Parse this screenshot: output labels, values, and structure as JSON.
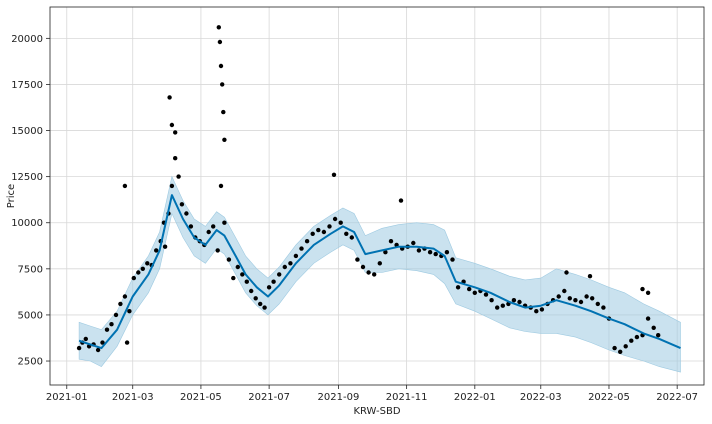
{
  "chart_data": {
    "type": "scatter",
    "title": "",
    "xlabel": "KRW-SBD",
    "ylabel": "Price",
    "xlim": [
      "2020-12-17",
      "2022-07-25"
    ],
    "ylim": [
      1200,
      21700
    ],
    "grid": true,
    "x_ticks": [
      "2021-01",
      "2021-03",
      "2021-05",
      "2021-07",
      "2021-09",
      "2021-11",
      "2022-01",
      "2022-03",
      "2022-05",
      "2022-07"
    ],
    "y_ticks": [
      2500,
      5000,
      7500,
      10000,
      12500,
      15000,
      17500,
      20000
    ],
    "colors": {
      "forecast": "#0072B2",
      "interval": "#9ecae1",
      "observed": "#000000"
    },
    "series": [
      {
        "kind": "observed",
        "x": [
          "2021-01-12",
          "2021-01-15",
          "2021-01-18",
          "2021-01-21",
          "2021-01-25",
          "2021-01-29",
          "2021-02-02",
          "2021-02-06",
          "2021-02-10",
          "2021-02-14",
          "2021-02-18",
          "2021-02-22",
          "2021-02-26",
          "2021-03-02",
          "2021-03-06",
          "2021-03-10",
          "2021-03-14",
          "2021-03-18",
          "2021-03-22",
          "2021-03-26",
          "2021-03-30",
          "2021-04-02",
          "2021-04-05",
          "2021-04-08",
          "2021-04-11",
          "2021-04-14",
          "2021-04-18",
          "2021-04-22",
          "2021-04-26",
          "2021-04-30",
          "2021-05-04",
          "2021-05-08",
          "2021-05-12",
          "2021-05-16",
          "2021-05-19",
          "2021-05-22",
          "2021-05-26",
          "2021-05-30",
          "2021-06-03",
          "2021-06-07",
          "2021-06-11",
          "2021-06-15",
          "2021-06-19",
          "2021-06-23",
          "2021-06-27",
          "2021-07-01",
          "2021-07-05",
          "2021-07-10",
          "2021-07-15",
          "2021-07-20",
          "2021-07-25",
          "2021-07-30",
          "2021-08-04",
          "2021-08-09",
          "2021-08-14",
          "2021-08-19",
          "2021-08-24",
          "2021-08-29",
          "2021-09-03",
          "2021-09-08",
          "2021-09-13",
          "2021-09-18",
          "2021-09-23",
          "2021-09-28",
          "2021-10-03",
          "2021-10-08",
          "2021-10-13",
          "2021-10-18",
          "2021-10-23",
          "2021-10-28",
          "2021-11-02",
          "2021-11-07",
          "2021-11-12",
          "2021-11-17",
          "2021-11-22",
          "2021-11-27",
          "2021-12-02",
          "2021-12-07",
          "2021-12-12",
          "2021-12-17",
          "2021-12-22",
          "2021-12-27",
          "2022-01-01",
          "2022-01-06",
          "2022-01-11",
          "2022-01-16",
          "2022-01-21",
          "2022-01-26",
          "2022-01-31",
          "2022-02-05",
          "2022-02-10",
          "2022-02-15",
          "2022-02-20",
          "2022-02-25",
          "2022-03-02",
          "2022-03-07",
          "2022-03-12",
          "2022-03-17",
          "2022-03-22",
          "2022-03-27",
          "2022-04-01",
          "2022-04-06",
          "2022-04-11",
          "2022-04-16",
          "2022-04-21",
          "2022-04-26",
          "2022-05-01",
          "2022-05-06",
          "2022-05-11",
          "2022-05-16",
          "2022-05-21",
          "2022-05-26",
          "2022-05-31",
          "2022-06-05",
          "2022-06-10",
          "2022-06-14"
        ],
        "y": [
          3200,
          3500,
          3700,
          3300,
          3400,
          3100,
          3500,
          4200,
          4500,
          5000,
          5600,
          6000,
          5200,
          7000,
          7300,
          7500,
          7800,
          7700,
          8500,
          9000,
          8700,
          10500,
          12000,
          13500,
          12500,
          11000,
          10500,
          9800,
          9200,
          9000,
          8800,
          9500,
          9800,
          8500,
          12000,
          10000,
          8000,
          7000,
          7600,
          7200,
          6800,
          6300,
          5900,
          5600,
          5400,
          6500,
          6800,
          7200,
          7600,
          7800,
          8200,
          8600,
          9000,
          9400,
          9600,
          9500,
          9800,
          10200,
          10000,
          9400,
          9200,
          8000,
          7600,
          7300,
          7200,
          7800,
          8400,
          9000,
          8800,
          8600,
          8700,
          8900,
          8500,
          8600,
          8400,
          8300,
          8200,
          8400,
          8000,
          6500,
          6800,
          6400,
          6200,
          6300,
          6100,
          5800,
          5400,
          5500,
          5600,
          5800,
          5700,
          5500,
          5400,
          5200,
          5300,
          5600,
          5800,
          6000,
          6300,
          5900,
          5800,
          5700,
          6000,
          5900,
          5600,
          5400,
          4800,
          3200,
          3000,
          3300,
          3600,
          3800,
          3900,
          4800,
          4300,
          3900
        ]
      },
      {
        "kind": "observed-spikes",
        "x": [
          "2021-02-22",
          "2021-02-24",
          "2021-03-29",
          "2021-04-03",
          "2021-04-05",
          "2021-04-08",
          "2021-05-17",
          "2021-05-18",
          "2021-05-19",
          "2021-05-20",
          "2021-05-21",
          "2021-05-22",
          "2021-08-28",
          "2021-10-27",
          "2022-03-24",
          "2022-04-14",
          "2022-05-31",
          "2022-06-05"
        ],
        "y": [
          12000,
          3500,
          10000,
          16800,
          15300,
          14900,
          20600,
          19800,
          18500,
          17500,
          16000,
          14500,
          12600,
          11200,
          7300,
          7100,
          6400,
          6200
        ]
      },
      {
        "name": "",
        "kind": "forecast",
        "x": [
          "2021-01-12",
          "2021-01-22",
          "2021-02-01",
          "2021-02-15",
          "2021-03-01",
          "2021-03-15",
          "2021-03-25",
          "2021-04-05",
          "2021-04-15",
          "2021-04-25",
          "2021-05-05",
          "2021-05-15",
          "2021-05-22",
          "2021-06-01",
          "2021-06-10",
          "2021-06-20",
          "2021-06-30",
          "2021-07-10",
          "2021-07-25",
          "2021-08-10",
          "2021-08-25",
          "2021-09-05",
          "2021-09-15",
          "2021-09-25",
          "2021-10-10",
          "2021-10-25",
          "2021-11-10",
          "2021-11-25",
          "2021-12-05",
          "2021-12-15",
          "2022-01-01",
          "2022-01-15",
          "2022-02-01",
          "2022-02-15",
          "2022-03-01",
          "2022-03-15",
          "2022-04-01",
          "2022-04-15",
          "2022-05-01",
          "2022-05-15",
          "2022-06-01",
          "2022-06-15",
          "2022-07-04"
        ],
        "y": [
          3600,
          3400,
          3200,
          4200,
          6000,
          7200,
          8500,
          11500,
          10200,
          9200,
          8800,
          9600,
          9300,
          8200,
          7200,
          6500,
          6000,
          6600,
          7800,
          8800,
          9400,
          9800,
          9500,
          8300,
          8500,
          8700,
          8700,
          8600,
          8200,
          6800,
          6500,
          6200,
          5700,
          5400,
          5500,
          5800,
          5500,
          5200,
          4800,
          4500,
          4000,
          3700,
          3200
        ],
        "lower": [
          2600,
          2500,
          2200,
          3300,
          5000,
          6200,
          7500,
          10500,
          9200,
          8200,
          7800,
          8600,
          8300,
          7200,
          6200,
          5500,
          5000,
          5600,
          6800,
          7800,
          8400,
          8800,
          8500,
          7300,
          7300,
          7500,
          7400,
          7200,
          6700,
          5600,
          5200,
          4800,
          4300,
          4100,
          4000,
          4000,
          3800,
          3500,
          3100,
          2800,
          2500,
          2200,
          1900
        ],
        "upper": [
          4600,
          4400,
          4200,
          5200,
          7000,
          8200,
          9500,
          12500,
          11200,
          10200,
          9800,
          10600,
          10300,
          9200,
          8200,
          7500,
          7000,
          7600,
          8800,
          9800,
          10400,
          10800,
          10500,
          9300,
          9700,
          9900,
          10000,
          9900,
          9600,
          8100,
          7800,
          7500,
          7100,
          6900,
          7000,
          7500,
          7200,
          6900,
          6500,
          6200,
          5600,
          5200,
          4600
        ]
      }
    ]
  }
}
